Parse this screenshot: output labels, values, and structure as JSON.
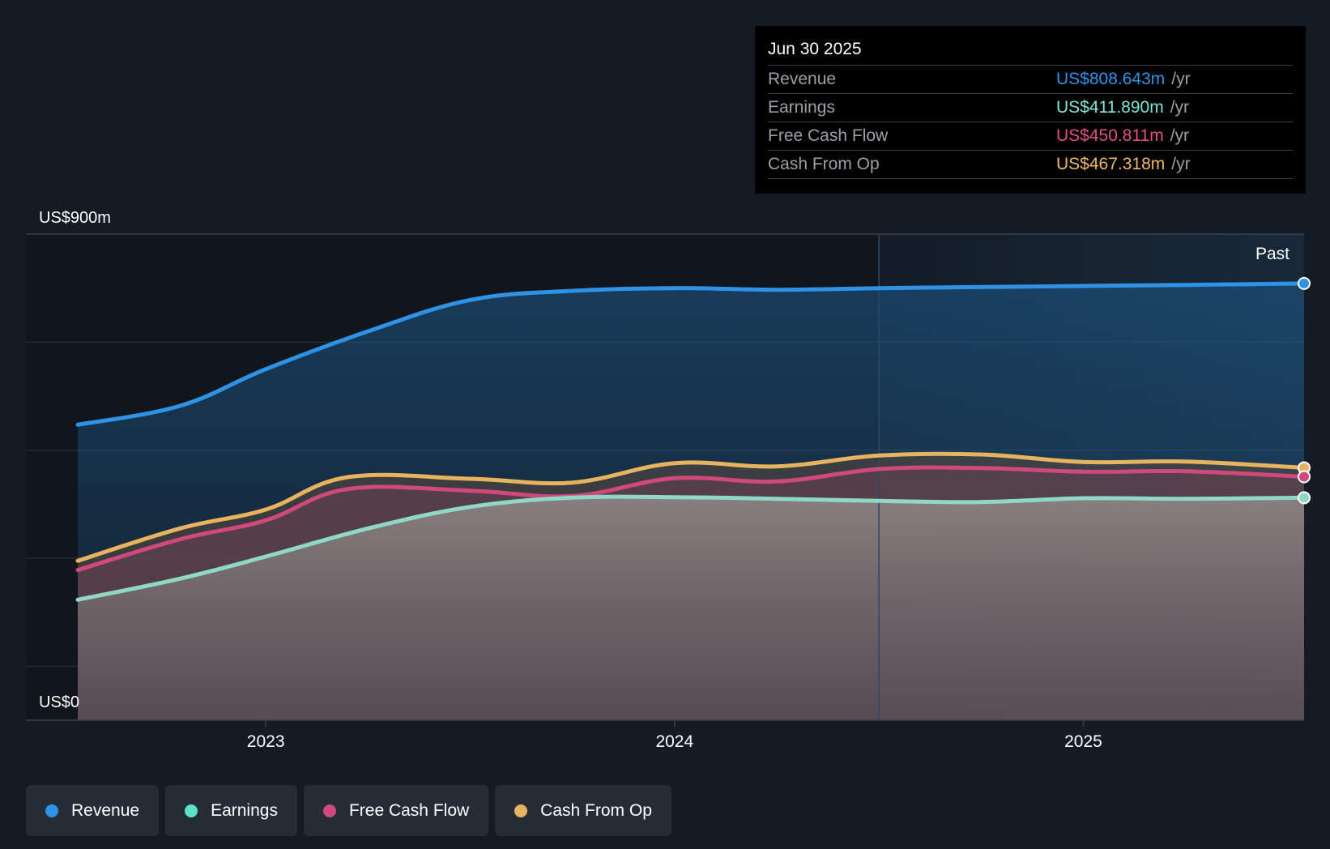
{
  "chart_data": {
    "type": "area",
    "title": "",
    "ylabel_top": "US$900m",
    "ylabel_bottom": "US$0",
    "ylim": [
      0,
      900
    ],
    "xlim": [
      2022.54,
      2025.54
    ],
    "x_ticks": [
      {
        "value": 2023,
        "label": "2023"
      },
      {
        "value": 2024,
        "label": "2024"
      },
      {
        "value": 2025,
        "label": "2025"
      }
    ],
    "past_divider": 2024.5,
    "past_label": "Past",
    "series": [
      {
        "name": "Revenue",
        "color": "#2e93e6",
        "points": [
          [
            2022.54,
            547
          ],
          [
            2022.79,
            582
          ],
          [
            2023.0,
            650
          ],
          [
            2023.25,
            720
          ],
          [
            2023.5,
            778
          ],
          [
            2023.75,
            795
          ],
          [
            2024.0,
            800
          ],
          [
            2024.25,
            797
          ],
          [
            2024.5,
            800
          ],
          [
            2024.75,
            802
          ],
          [
            2025.0,
            804
          ],
          [
            2025.25,
            806
          ],
          [
            2025.54,
            808.643
          ]
        ]
      },
      {
        "name": "Cash From Op",
        "color": "#e8b35f",
        "points": [
          [
            2022.54,
            295
          ],
          [
            2022.79,
            355
          ],
          [
            2023.0,
            390
          ],
          [
            2023.2,
            450
          ],
          [
            2023.5,
            447
          ],
          [
            2023.75,
            440
          ],
          [
            2024.0,
            476
          ],
          [
            2024.25,
            470
          ],
          [
            2024.5,
            490
          ],
          [
            2024.75,
            492
          ],
          [
            2025.0,
            478
          ],
          [
            2025.25,
            479
          ],
          [
            2025.54,
            467.318
          ]
        ]
      },
      {
        "name": "Free Cash Flow",
        "color": "#d0497a",
        "points": [
          [
            2022.54,
            278
          ],
          [
            2022.79,
            335
          ],
          [
            2023.0,
            370
          ],
          [
            2023.2,
            428
          ],
          [
            2023.5,
            425
          ],
          [
            2023.75,
            415
          ],
          [
            2024.0,
            448
          ],
          [
            2024.25,
            442
          ],
          [
            2024.5,
            465
          ],
          [
            2024.75,
            467
          ],
          [
            2025.0,
            460
          ],
          [
            2025.25,
            461
          ],
          [
            2025.54,
            450.811
          ]
        ]
      },
      {
        "name": "Earnings",
        "color": "#8ed8c5",
        "points": [
          [
            2022.54,
            223
          ],
          [
            2022.79,
            262
          ],
          [
            2023.0,
            303
          ],
          [
            2023.25,
            355
          ],
          [
            2023.5,
            395
          ],
          [
            2023.75,
            412
          ],
          [
            2024.0,
            413
          ],
          [
            2024.25,
            410
          ],
          [
            2024.5,
            406
          ],
          [
            2024.75,
            404
          ],
          [
            2025.0,
            411
          ],
          [
            2025.25,
            410
          ],
          [
            2025.54,
            411.89
          ]
        ]
      }
    ],
    "tooltip": {
      "date": "Jun 30 2025",
      "rows": [
        {
          "label": "Revenue",
          "value": "US$808.643m",
          "unit": "/yr",
          "color": "#2e93e6"
        },
        {
          "label": "Earnings",
          "value": "US$411.890m",
          "unit": "/yr",
          "color": "#7ee8d8"
        },
        {
          "label": "Free Cash Flow",
          "value": "US$450.811m",
          "unit": "/yr",
          "color": "#e0508a"
        },
        {
          "label": "Cash From Op",
          "value": "US$467.318m",
          "unit": "/yr",
          "color": "#f0b860"
        }
      ]
    },
    "legend": [
      {
        "label": "Revenue",
        "color": "#2e93e6"
      },
      {
        "label": "Earnings",
        "color": "#5fe0cc"
      },
      {
        "label": "Free Cash Flow",
        "color": "#d0497a"
      },
      {
        "label": "Cash From Op",
        "color": "#e8b35f"
      }
    ]
  }
}
